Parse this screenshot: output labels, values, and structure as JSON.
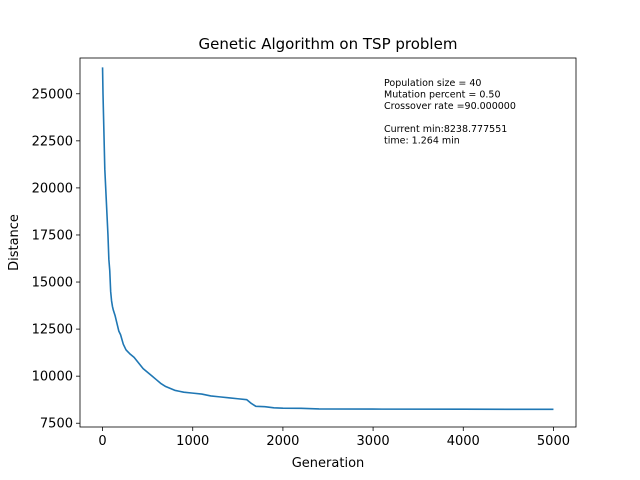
{
  "chart_data": {
    "type": "line",
    "title": "Genetic Algorithm on TSP problem",
    "xlabel": "Generation",
    "ylabel": "Distance",
    "xlim": [
      -250,
      5250
    ],
    "ylim": [
      7300,
      26900
    ],
    "xticks": [
      0,
      1000,
      2000,
      3000,
      4000,
      5000
    ],
    "xtick_labels": [
      "0",
      "1000",
      "2000",
      "3000",
      "4000",
      "5000"
    ],
    "yticks": [
      7500,
      10000,
      12500,
      15000,
      17500,
      20000,
      22500,
      25000
    ],
    "ytick_labels": [
      "7500",
      "10000",
      "12500",
      "15000",
      "17500",
      "20000",
      "22500",
      "25000"
    ],
    "grid": false,
    "line_color": "#1f77b4",
    "annotations": [
      "Population size = 40",
      "Mutation percent = 0.50",
      "Crossover rate =90.000000",
      "",
      "Current min:8238.777551",
      "time: 1.264 min"
    ],
    "series": [
      {
        "x": [
          0,
          5,
          10,
          15,
          20,
          25,
          30,
          35,
          40,
          50,
          60,
          70,
          80,
          90,
          100,
          110,
          120,
          140,
          160,
          180,
          200,
          230,
          260,
          300,
          350,
          400,
          450,
          500,
          550,
          600,
          650,
          700,
          750,
          800,
          850,
          900,
          1000,
          1100,
          1200,
          1300,
          1400,
          1500,
          1600,
          1650,
          1700,
          1800,
          1900,
          2000,
          2200,
          2400,
          3000,
          4000,
          5000
        ],
        "y": [
          26400,
          25000,
          24000,
          23000,
          22000,
          21000,
          20500,
          20000,
          19500,
          18500,
          17500,
          16200,
          15600,
          14500,
          14000,
          13700,
          13500,
          13200,
          12800,
          12400,
          12200,
          11700,
          11400,
          11200,
          11000,
          10700,
          10400,
          10200,
          10000,
          9800,
          9600,
          9450,
          9350,
          9250,
          9200,
          9150,
          9100,
          9050,
          8950,
          8900,
          8850,
          8800,
          8750,
          8550,
          8400,
          8380,
          8320,
          8300,
          8290,
          8260,
          8250,
          8245,
          8238
        ]
      }
    ]
  }
}
